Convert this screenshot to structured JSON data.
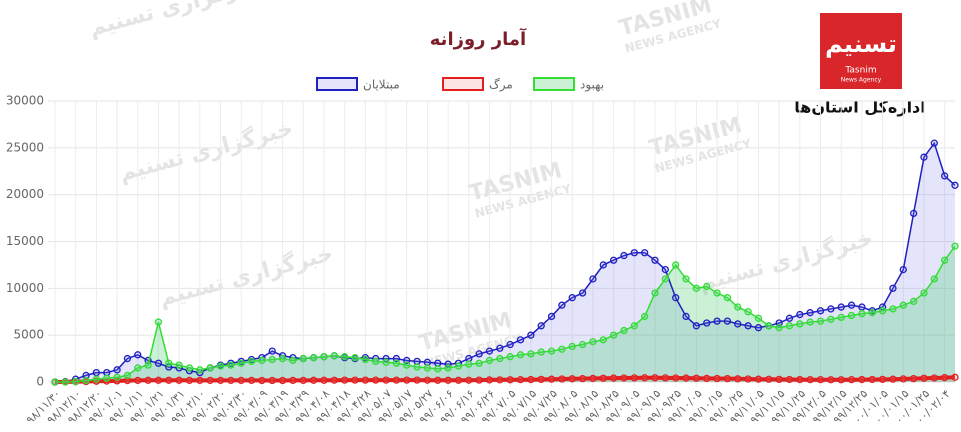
{
  "header": {
    "title": "آمار روزانه",
    "logo": "تسنیم",
    "logo_sub": "Tasnim",
    "logo_sub2": "News Agency",
    "department": "اداره‌کل استان‌ها"
  },
  "watermark": {
    "fa": "خبرگزاری تسنیم",
    "en": "TASNIM",
    "en2": "NEWS AGENCY"
  },
  "chart_data": {
    "type": "line",
    "categories": [
      "۹۸/۱۱/۳۰",
      null,
      "۹۸/۱۲/۱۰",
      null,
      "۹۸/۱۲/۲۰",
      null,
      "۹۹/۰۱/۰۱",
      null,
      "۹۹/۰۱/۱۱",
      null,
      "۹۹/۰۱/۲۱",
      null,
      "۹۹/۰۱/۳۱",
      null,
      "۹۹/۰۲/۱۰",
      null,
      "۹۹/۰۲/۲۰",
      null,
      "۹۹/۰۲/۳۰",
      null,
      "۹۹/۰۳/۰۹",
      null,
      "۹۹/۰۳/۱۹",
      null,
      "۹۹/۰۳/۲۹",
      null,
      "۹۹/۰۴/۰۸",
      null,
      "۹۹/۰۴/۱۸",
      null,
      "۹۹/۰۴/۲۸",
      null,
      "۹۹/۰۵/۰۷",
      null,
      "۹۹/۰۵/۱۷",
      null,
      "۹۹/۰۵/۲۷",
      null,
      "۹۹/۰۶/۰۶",
      null,
      "۹۹/۰۶/۱۶",
      null,
      "۹۹/۰۶/۲۶",
      null,
      "۹۹/۰۷/۰۵",
      null,
      "۹۹/۰۷/۱۵",
      null,
      "۹۹/۰۷/۲۵",
      null,
      "۹۹/۰۸/۰۵",
      null,
      "۹۹/۰۸/۱۵",
      null,
      "۹۹/۰۸/۲۵",
      null,
      "۹۹/۰۹/۰۵",
      null,
      "۹۹/۰۹/۱۵",
      null,
      "۹۹/۰۹/۲۵",
      null,
      "۹۹/۱۰/۰۵",
      null,
      "۹۹/۱۰/۱۵",
      null,
      "۹۹/۱۰/۲۵",
      null,
      "۹۹/۱۱/۰۵",
      null,
      "۹۹/۱۱/۱۵",
      null,
      "۹۹/۱۱/۲۵",
      null,
      "۹۹/۱۲/۰۵",
      null,
      "۹۹/۱۲/۱۵",
      null,
      "۹۹/۱۲/۲۵",
      null,
      "۰۰/۰۱/۰۵",
      null,
      "۰۰/۰۱/۱۵",
      null,
      "۰۰/۰۱/۲۵",
      null,
      "۰۰/۰۲/۰۴",
      null
    ],
    "series": [
      {
        "name": "مبتلایان",
        "color": "#2020c0",
        "fill": "rgba(120,120,230,0.2)",
        "values": [
          0,
          50,
          300,
          700,
          1000,
          1000,
          1300,
          2500,
          2900,
          2300,
          2000,
          1600,
          1500,
          1200,
          1000,
          1500,
          1800,
          2000,
          2200,
          2400,
          2600,
          3300,
          2800,
          2600,
          2500,
          2600,
          2700,
          2800,
          2600,
          2500,
          2600,
          2500,
          2500,
          2500,
          2300,
          2200,
          2100,
          2000,
          1900,
          2000,
          2500,
          3000,
          3300,
          3600,
          4000,
          4500,
          5000,
          6000,
          7000,
          8200,
          9000,
          9500,
          11000,
          12500,
          13000,
          13500,
          13800,
          13800,
          13000,
          12000,
          9000,
          7000,
          6000,
          6300,
          6500,
          6500,
          6200,
          6000,
          5800,
          6000,
          6300,
          6800,
          7200,
          7400,
          7600,
          7800,
          8000,
          8200,
          8000,
          7600,
          8000,
          10000,
          12000,
          18000,
          24000,
          25500,
          22000,
          21000
        ]
      },
      {
        "name": "مرگ",
        "color": "#e02020",
        "fill": "rgba(240,120,120,0.2)",
        "values": [
          0,
          10,
          30,
          50,
          80,
          100,
          120,
          150,
          170,
          180,
          180,
          180,
          180,
          170,
          170,
          170,
          170,
          170,
          170,
          170,
          160,
          160,
          160,
          170,
          170,
          180,
          180,
          190,
          200,
          200,
          200,
          200,
          200,
          200,
          200,
          200,
          190,
          180,
          180,
          180,
          190,
          200,
          220,
          230,
          240,
          250,
          260,
          280,
          300,
          320,
          340,
          360,
          380,
          400,
          420,
          430,
          440,
          450,
          450,
          440,
          430,
          420,
          400,
          380,
          370,
          360,
          340,
          320,
          300,
          290,
          280,
          270,
          260,
          250,
          250,
          240,
          240,
          250,
          260,
          270,
          280,
          300,
          330,
          360,
          400,
          430,
          470,
          500
        ]
      },
      {
        "name": "بهبود",
        "color": "#33dd33",
        "fill": "rgba(80,210,120,0.3)",
        "values": [
          0,
          0,
          50,
          150,
          300,
          400,
          500,
          700,
          1500,
          1800,
          6400,
          2000,
          1800,
          1500,
          1300,
          1500,
          1700,
          1800,
          2000,
          2200,
          2300,
          2400,
          2500,
          2300,
          2500,
          2600,
          2700,
          2800,
          2700,
          2600,
          2400,
          2200,
          2100,
          2000,
          1800,
          1600,
          1500,
          1400,
          1500,
          1700,
          1900,
          2000,
          2300,
          2500,
          2700,
          2900,
          3000,
          3200,
          3300,
          3500,
          3800,
          4000,
          4300,
          4500,
          5000,
          5500,
          6000,
          7000,
          9500,
          11000,
          12500,
          11000,
          10000,
          10200,
          9500,
          9000,
          8000,
          7500,
          6800,
          6000,
          5800,
          6000,
          6200,
          6400,
          6500,
          6700,
          6900,
          7100,
          7300,
          7400,
          7600,
          7800,
          8200,
          8600,
          9500,
          11000,
          13000,
          14500
        ]
      }
    ],
    "ylim": [
      0,
      30000
    ],
    "yticks": [
      0,
      5000,
      10000,
      15000,
      20000,
      25000,
      30000
    ],
    "grid": true,
    "legend": "top"
  }
}
